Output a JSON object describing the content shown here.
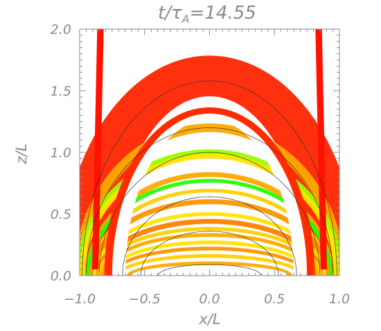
{
  "chart_data": {
    "type": "heatmap",
    "title": "t/τA=14.55",
    "title_parts": {
      "t": "t",
      "slash": "/",
      "tau": "τ",
      "sub": "A",
      "rest": "=14.55"
    },
    "xlabel": "x/L",
    "ylabel": "z/L",
    "xlim": [
      -1.0,
      1.0
    ],
    "ylim": [
      0.0,
      2.0
    ],
    "xticks": [
      "−1.0",
      "−0.5",
      "0.0",
      "0.5",
      "1.0"
    ],
    "xtick_values": [
      -1.0,
      -0.5,
      0.0,
      0.5,
      1.0
    ],
    "yticks": [
      "0.0",
      "0.5",
      "1.0",
      "1.5",
      "2.0"
    ],
    "ytick_values": [
      0.0,
      0.5,
      1.0,
      1.5,
      2.0
    ],
    "colormap": [
      "#ff0000",
      "#ff7a00",
      "#ffff00",
      "#00ff00"
    ],
    "field_lines_apex_z": [
      0.09,
      0.36,
      0.64,
      1.0,
      1.2,
      1.58
    ],
    "bands": [
      {
        "apex": 1.62,
        "width": 0.33,
        "half_base": 0.95,
        "level": 0.1
      },
      {
        "apex": 1.2,
        "width": 0.07,
        "half_base": 1.0,
        "level": 0.45
      },
      {
        "apex": 1.0,
        "width": 0.05,
        "half_base": 1.0,
        "level": 0.8
      },
      {
        "apex": 0.97,
        "width": 0.04,
        "half_base": 0.98,
        "level": 0.6
      },
      {
        "apex": 0.82,
        "width": 0.04,
        "half_base": 0.93,
        "level": 0.45
      },
      {
        "apex": 0.77,
        "width": 0.03,
        "half_base": 0.93,
        "level": 0.95
      },
      {
        "apex": 0.69,
        "width": 0.03,
        "half_base": 0.9,
        "level": 0.55
      },
      {
        "apex": 0.6,
        "width": 0.04,
        "half_base": 0.9,
        "level": 0.4
      },
      {
        "apex": 0.5,
        "width": 0.03,
        "half_base": 0.88,
        "level": 0.6
      },
      {
        "apex": 0.44,
        "width": 0.04,
        "half_base": 0.85,
        "level": 0.35
      },
      {
        "apex": 0.38,
        "width": 0.03,
        "half_base": 0.85,
        "level": 0.55
      },
      {
        "apex": 0.33,
        "width": 0.03,
        "half_base": 0.82,
        "level": 0.45
      },
      {
        "apex": 0.27,
        "width": 0.03,
        "half_base": 0.78,
        "level": 0.6
      },
      {
        "apex": 0.22,
        "width": 0.03,
        "half_base": 0.75,
        "level": 0.4
      },
      {
        "apex": 0.16,
        "width": 0.03,
        "half_base": 0.7,
        "level": 0.55
      },
      {
        "apex": 0.1,
        "width": 0.03,
        "half_base": 0.62,
        "level": 0.45
      }
    ],
    "outer_legs": [
      {
        "x_bottom": -0.88,
        "x_top": -0.84,
        "width": 0.05
      },
      {
        "x_bottom": 0.88,
        "x_top": 0.84,
        "width": 0.05
      }
    ]
  }
}
